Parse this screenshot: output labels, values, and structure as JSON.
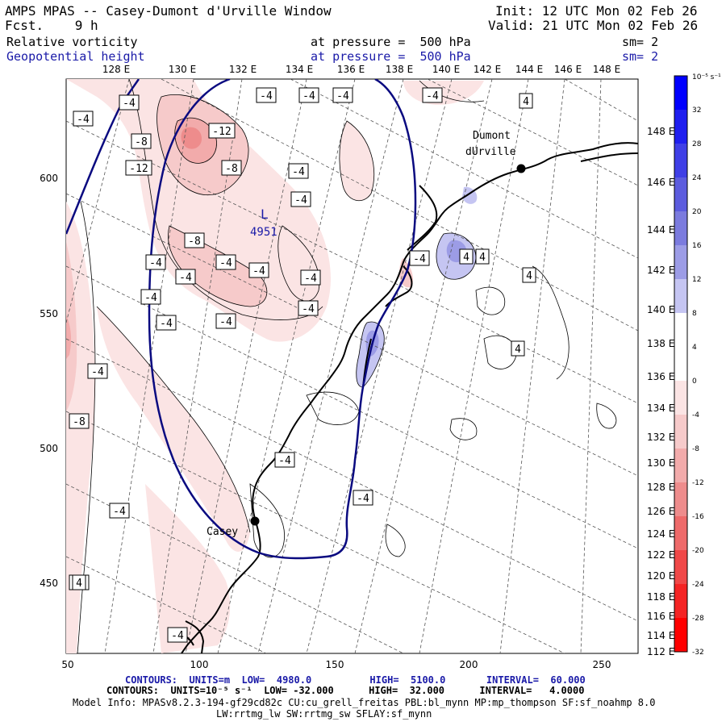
{
  "header": {
    "title": "AMPS MPAS -- Casey-Dumont d'Urville Window",
    "forecast": "Fcst.    9 h",
    "init": "Init: 12 UTC Mon 02 Feb 26",
    "valid": "Valid: 21 UTC Mon 02 Feb 26",
    "field1_name": "Relative vorticity",
    "field1_level": "at pressure =  500 hPa",
    "field1_sm": "sm= 2",
    "field2_name": "Geopotential height",
    "field2_level": "at pressure =  500 hPa",
    "field2_sm": "sm= 2"
  },
  "top_lon_labels": [
    "128 E",
    "130 E",
    "132 E",
    "134 E",
    "136 E",
    "138 E",
    "140 E",
    "142 E",
    "144 E",
    "146 E",
    "148 E"
  ],
  "right_lon_labels": [
    "148 E",
    "146 E",
    "144 E",
    "142 E",
    "140 E",
    "138 E",
    "136 E",
    "134 E",
    "132 E",
    "130 E",
    "128 E",
    "126 E",
    "124 E",
    "122 E",
    "120 E",
    "118 E",
    "116 E",
    "114 E",
    "112 E"
  ],
  "x_axis_labels": [
    "50",
    "100",
    "150",
    "200",
    "250"
  ],
  "y_axis_labels": [
    "600",
    "550",
    "500",
    "450"
  ],
  "colorbar": {
    "unit": "10⁻⁵ s⁻¹",
    "levels": [
      "32",
      "28",
      "24",
      "20",
      "16",
      "12",
      "8",
      "4",
      "0",
      "-4",
      "-8",
      "-12",
      "-16",
      "-20",
      "-24",
      "-28",
      "-32"
    ],
    "colors": [
      "#0000ff",
      "#1f1fef",
      "#3f3fe6",
      "#5c5cde",
      "#7b7bde",
      "#9c9ce6",
      "#c5c5f2",
      "#ffffff",
      "#ffffff",
      "#fbe4e4",
      "#f6caca",
      "#f2abab",
      "#ee8c8c",
      "#ee6a6a",
      "#f04848",
      "#f42424",
      "#ff0000"
    ]
  },
  "stations": {
    "dumont": "Dumont dUrville",
    "casey": "Casey"
  },
  "low_marker": {
    "letter": "L",
    "value": "4951"
  },
  "contour_labels": [
    "-4",
    "-4",
    "-4",
    "-4",
    "-4",
    "-4",
    "-12",
    "-8",
    "-12",
    "-8",
    "-4",
    "-4",
    "-8",
    "-4",
    "-4",
    "-4",
    "-4",
    "-4",
    "-4",
    "-4",
    "-4",
    "-4",
    "-4",
    "-4",
    "-4",
    "-8",
    "-4",
    "-4",
    "-4",
    "-4",
    "4",
    "4",
    "4",
    "4",
    "4",
    "4"
  ],
  "footer": {
    "line1": "CONTOURS:  UNITS=m  LOW=  4980.0          HIGH=  5100.0       INTERVAL=  60.000",
    "line2": "CONTOURS:  UNITS=10⁻⁵ s⁻¹  LOW= -32.000      HIGH=  32.000      INTERVAL=   4.0000",
    "line3": "Model Info: MPASv8.2.3-194-gf29cd82c CU:cu_grell_freitas PBL:bl_mynn MP:mp_thompson SF:sf_noahmp 8.0",
    "line4": "LW:rrtmg_lw SW:rrtmg_sw SFLAY:sf_mynn"
  }
}
